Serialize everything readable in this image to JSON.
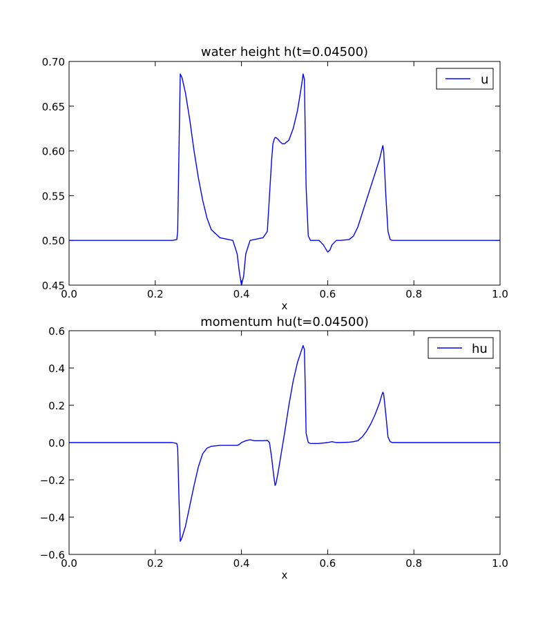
{
  "chart_data": [
    {
      "type": "line",
      "title": "water height h(t=0.04500)",
      "xlabel": "x",
      "ylabel": "",
      "xlim": [
        0.0,
        1.0
      ],
      "ylim": [
        0.45,
        0.7
      ],
      "xticks": [
        "0.0",
        "0.2",
        "0.4",
        "0.6",
        "0.8",
        "1.0"
      ],
      "yticks": [
        "0.45",
        "0.50",
        "0.55",
        "0.60",
        "0.65",
        "0.70"
      ],
      "grid": false,
      "legend_position": "top-right",
      "series": [
        {
          "name": "u",
          "color": "#0000ff",
          "x": [
            0.0,
            0.24,
            0.25,
            0.252,
            0.255,
            0.258,
            0.262,
            0.27,
            0.28,
            0.29,
            0.3,
            0.31,
            0.32,
            0.33,
            0.35,
            0.37,
            0.38,
            0.39,
            0.395,
            0.4,
            0.405,
            0.41,
            0.42,
            0.43,
            0.44,
            0.45,
            0.46,
            0.465,
            0.47,
            0.473,
            0.476,
            0.478,
            0.48,
            0.485,
            0.49,
            0.495,
            0.5,
            0.51,
            0.52,
            0.53,
            0.54,
            0.543,
            0.546,
            0.55,
            0.555,
            0.56,
            0.58,
            0.59,
            0.6,
            0.605,
            0.61,
            0.62,
            0.63,
            0.65,
            0.66,
            0.67,
            0.68,
            0.69,
            0.7,
            0.71,
            0.72,
            0.725,
            0.728,
            0.73,
            0.735,
            0.74,
            0.745,
            0.75,
            0.76,
            0.8,
            0.9,
            1.0
          ],
          "y": [
            0.5,
            0.5,
            0.501,
            0.51,
            0.6,
            0.686,
            0.682,
            0.665,
            0.635,
            0.6,
            0.57,
            0.545,
            0.525,
            0.512,
            0.503,
            0.501,
            0.5,
            0.485,
            0.465,
            0.45,
            0.46,
            0.485,
            0.5,
            0.501,
            0.502,
            0.503,
            0.51,
            0.55,
            0.59,
            0.608,
            0.613,
            0.615,
            0.615,
            0.613,
            0.61,
            0.608,
            0.608,
            0.612,
            0.625,
            0.645,
            0.675,
            0.686,
            0.68,
            0.56,
            0.505,
            0.5,
            0.5,
            0.495,
            0.487,
            0.489,
            0.495,
            0.5,
            0.5,
            0.501,
            0.505,
            0.515,
            0.53,
            0.545,
            0.56,
            0.575,
            0.59,
            0.6,
            0.606,
            0.6,
            0.55,
            0.51,
            0.501,
            0.5,
            0.5,
            0.5,
            0.5,
            0.5
          ]
        }
      ]
    },
    {
      "type": "line",
      "title": "momentum hu(t=0.04500)",
      "xlabel": "x",
      "ylabel": "",
      "xlim": [
        0.0,
        1.0
      ],
      "ylim": [
        -0.6,
        0.6
      ],
      "xticks": [
        "0.0",
        "0.2",
        "0.4",
        "0.6",
        "0.8",
        "1.0"
      ],
      "yticks": [
        "−0.6",
        "−0.4",
        "−0.2",
        "0.0",
        "0.2",
        "0.4",
        "0.6"
      ],
      "grid": false,
      "legend_position": "top-right",
      "series": [
        {
          "name": "hu",
          "color": "#0000ff",
          "x": [
            0.0,
            0.24,
            0.25,
            0.252,
            0.255,
            0.258,
            0.262,
            0.27,
            0.28,
            0.29,
            0.3,
            0.31,
            0.32,
            0.33,
            0.35,
            0.37,
            0.38,
            0.39,
            0.395,
            0.4,
            0.41,
            0.42,
            0.43,
            0.44,
            0.45,
            0.46,
            0.465,
            0.47,
            0.475,
            0.478,
            0.48,
            0.485,
            0.49,
            0.5,
            0.51,
            0.52,
            0.53,
            0.54,
            0.543,
            0.546,
            0.548,
            0.55,
            0.555,
            0.56,
            0.58,
            0.6,
            0.61,
            0.62,
            0.63,
            0.65,
            0.66,
            0.67,
            0.68,
            0.69,
            0.7,
            0.71,
            0.72,
            0.725,
            0.728,
            0.73,
            0.735,
            0.74,
            0.745,
            0.75,
            0.8,
            0.9,
            1.0
          ],
          "y": [
            0.0,
            0.0,
            -0.005,
            -0.03,
            -0.3,
            -0.53,
            -0.51,
            -0.45,
            -0.34,
            -0.23,
            -0.13,
            -0.06,
            -0.03,
            -0.02,
            -0.015,
            -0.015,
            -0.015,
            -0.015,
            -0.01,
            0.0,
            0.01,
            0.015,
            0.01,
            0.01,
            0.01,
            0.012,
            0.0,
            -0.08,
            -0.18,
            -0.23,
            -0.22,
            -0.16,
            -0.09,
            0.05,
            0.2,
            0.33,
            0.43,
            0.5,
            0.52,
            0.5,
            0.3,
            0.05,
            0.0,
            -0.005,
            -0.005,
            0.0,
            0.005,
            0.0,
            0.0,
            0.002,
            0.005,
            0.01,
            0.03,
            0.06,
            0.1,
            0.15,
            0.21,
            0.25,
            0.27,
            0.26,
            0.15,
            0.03,
            0.005,
            0.0,
            0.0,
            0.0,
            0.0
          ]
        }
      ]
    }
  ]
}
